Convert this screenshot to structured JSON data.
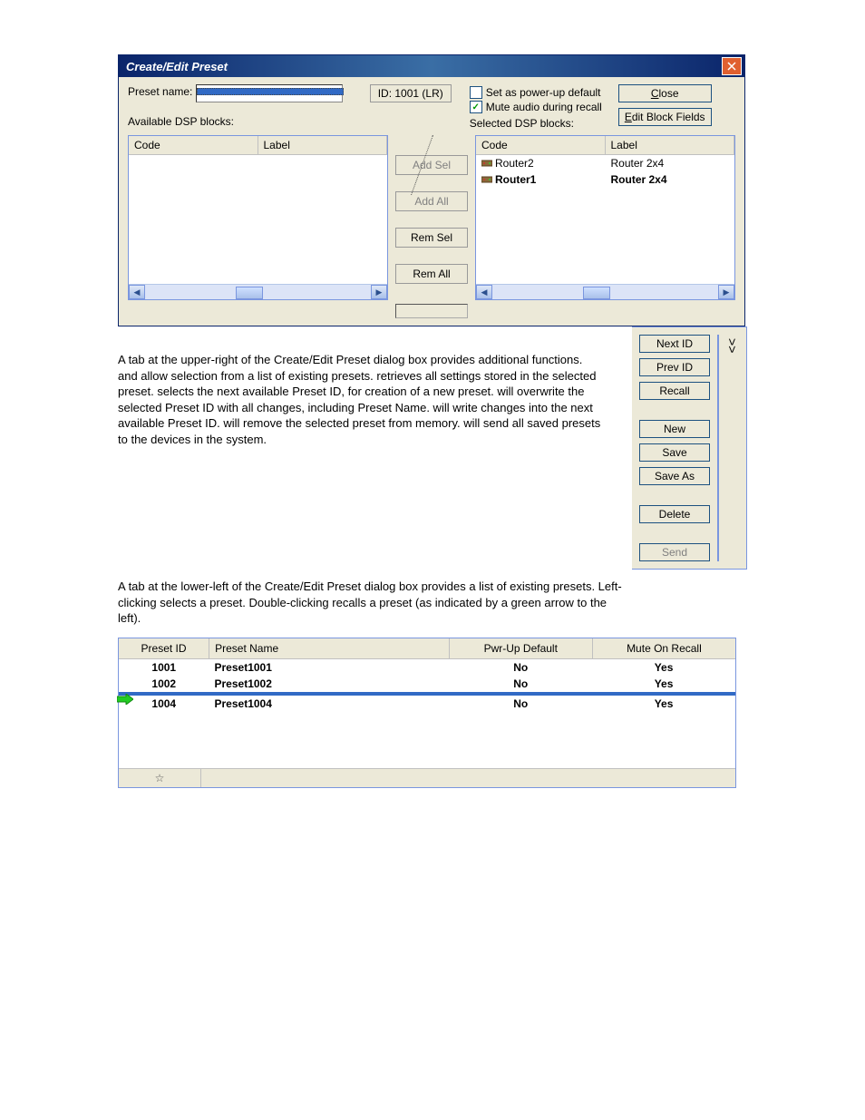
{
  "dialog": {
    "title": "Create/Edit Preset",
    "preset_name_label": "Preset name:",
    "id_label": "ID: 1001 (LR)",
    "available_label": "Available DSP blocks:",
    "selected_label": "Selected DSP blocks:",
    "chk_powerup": "Set as power-up default",
    "chk_mute": "Mute audio during recall",
    "close_btn": "Close",
    "edit_fields_btn": "Edit Block Fields",
    "header_code": "Code",
    "header_label": "Label",
    "mid": {
      "add_sel": "Add Sel",
      "add_all": "Add All",
      "rem_sel": "Rem Sel",
      "rem_all": "Rem All"
    },
    "selected_rows": [
      {
        "code": "Router2",
        "label": "Router 2x4",
        "bold": false
      },
      {
        "code": "Router1",
        "label": "Router 2x4",
        "bold": true
      }
    ]
  },
  "para1": "A tab at the upper-right of the Create/Edit Preset dialog box provides additional functions.               and               allow selection from a list of existing presets.           retrieves all settings stored in the selected preset.           selects the next available Preset ID, for creation of a new preset.           will overwrite the selected Preset ID with all changes, including Preset Name.               will write changes into the next available Preset ID.           will remove the selected preset from memory.           will send all saved presets to the devices in the system.",
  "tab": {
    "next_id": "Next ID",
    "prev_id": "Prev ID",
    "recall": "Recall",
    "new": "New",
    "save": "Save",
    "save_as": "Save As",
    "delete": "Delete",
    "send": "Send",
    "toggle": "<<"
  },
  "para2": "A tab at the lower-left of the Create/Edit Preset dialog box provides a list of existing presets. Left-clicking selects a preset. Double-clicking recalls a preset (as indicated by a green arrow to the left).",
  "preset_list": {
    "col_id": "Preset ID",
    "col_name": "Preset Name",
    "col_def": "Pwr-Up Default",
    "col_mute": "Mute On Recall",
    "rows": [
      {
        "id": "1001",
        "name": "Preset1001",
        "def": "No",
        "mute": "Yes",
        "selected": false,
        "arrow": false
      },
      {
        "id": "1002",
        "name": "Preset1002",
        "def": "No",
        "mute": "Yes",
        "selected": false,
        "arrow": false
      },
      {
        "id": "",
        "name": "",
        "def": "",
        "mute": "",
        "selected": true,
        "arrow": true
      },
      {
        "id": "1004",
        "name": "Preset1004",
        "def": "No",
        "mute": "Yes",
        "selected": false,
        "arrow": false
      }
    ],
    "footer_glyph": "☆"
  }
}
